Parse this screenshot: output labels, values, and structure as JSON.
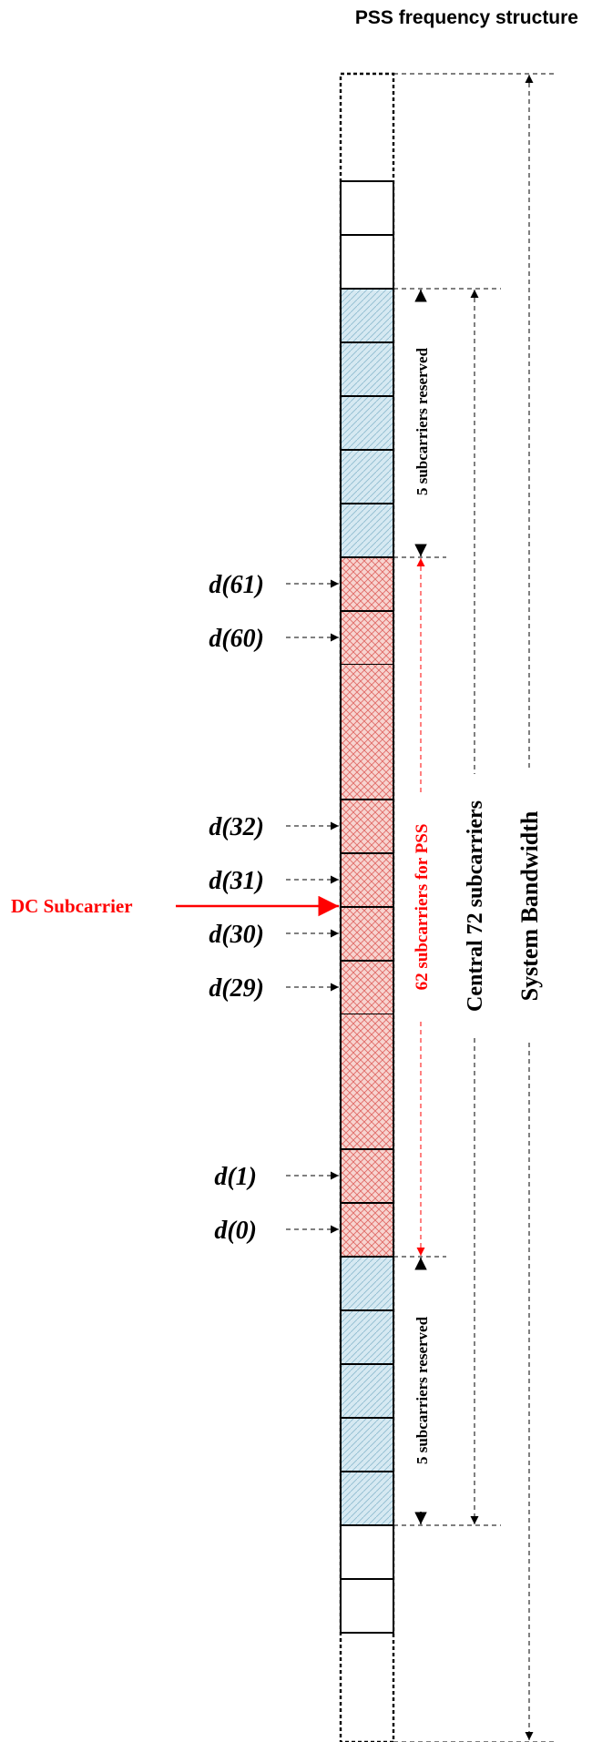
{
  "title": "PSS frequency structure",
  "dc_label": "DC Subcarrier",
  "span_labels": {
    "system_bandwidth": "System Bandwidth",
    "central": "Central 72 subcarriers",
    "pss": "62 subcarriers for PSS",
    "reserved_top": "5 subcarriers reserved",
    "reserved_bottom": "5 subcarriers reserved"
  },
  "d_labels": [
    "d(61)",
    "d(60)",
    "d(32)",
    "d(31)",
    "d(30)",
    "d(29)",
    "d(1)",
    "d(0)"
  ],
  "colors": {
    "pss_fill": "#f7d4d0",
    "pss_hatch": "#e06a66",
    "reserved_fill": "#d6e9f2",
    "reserved_hatch": "#8fbbd0",
    "accent_red": "#ff0000"
  }
}
